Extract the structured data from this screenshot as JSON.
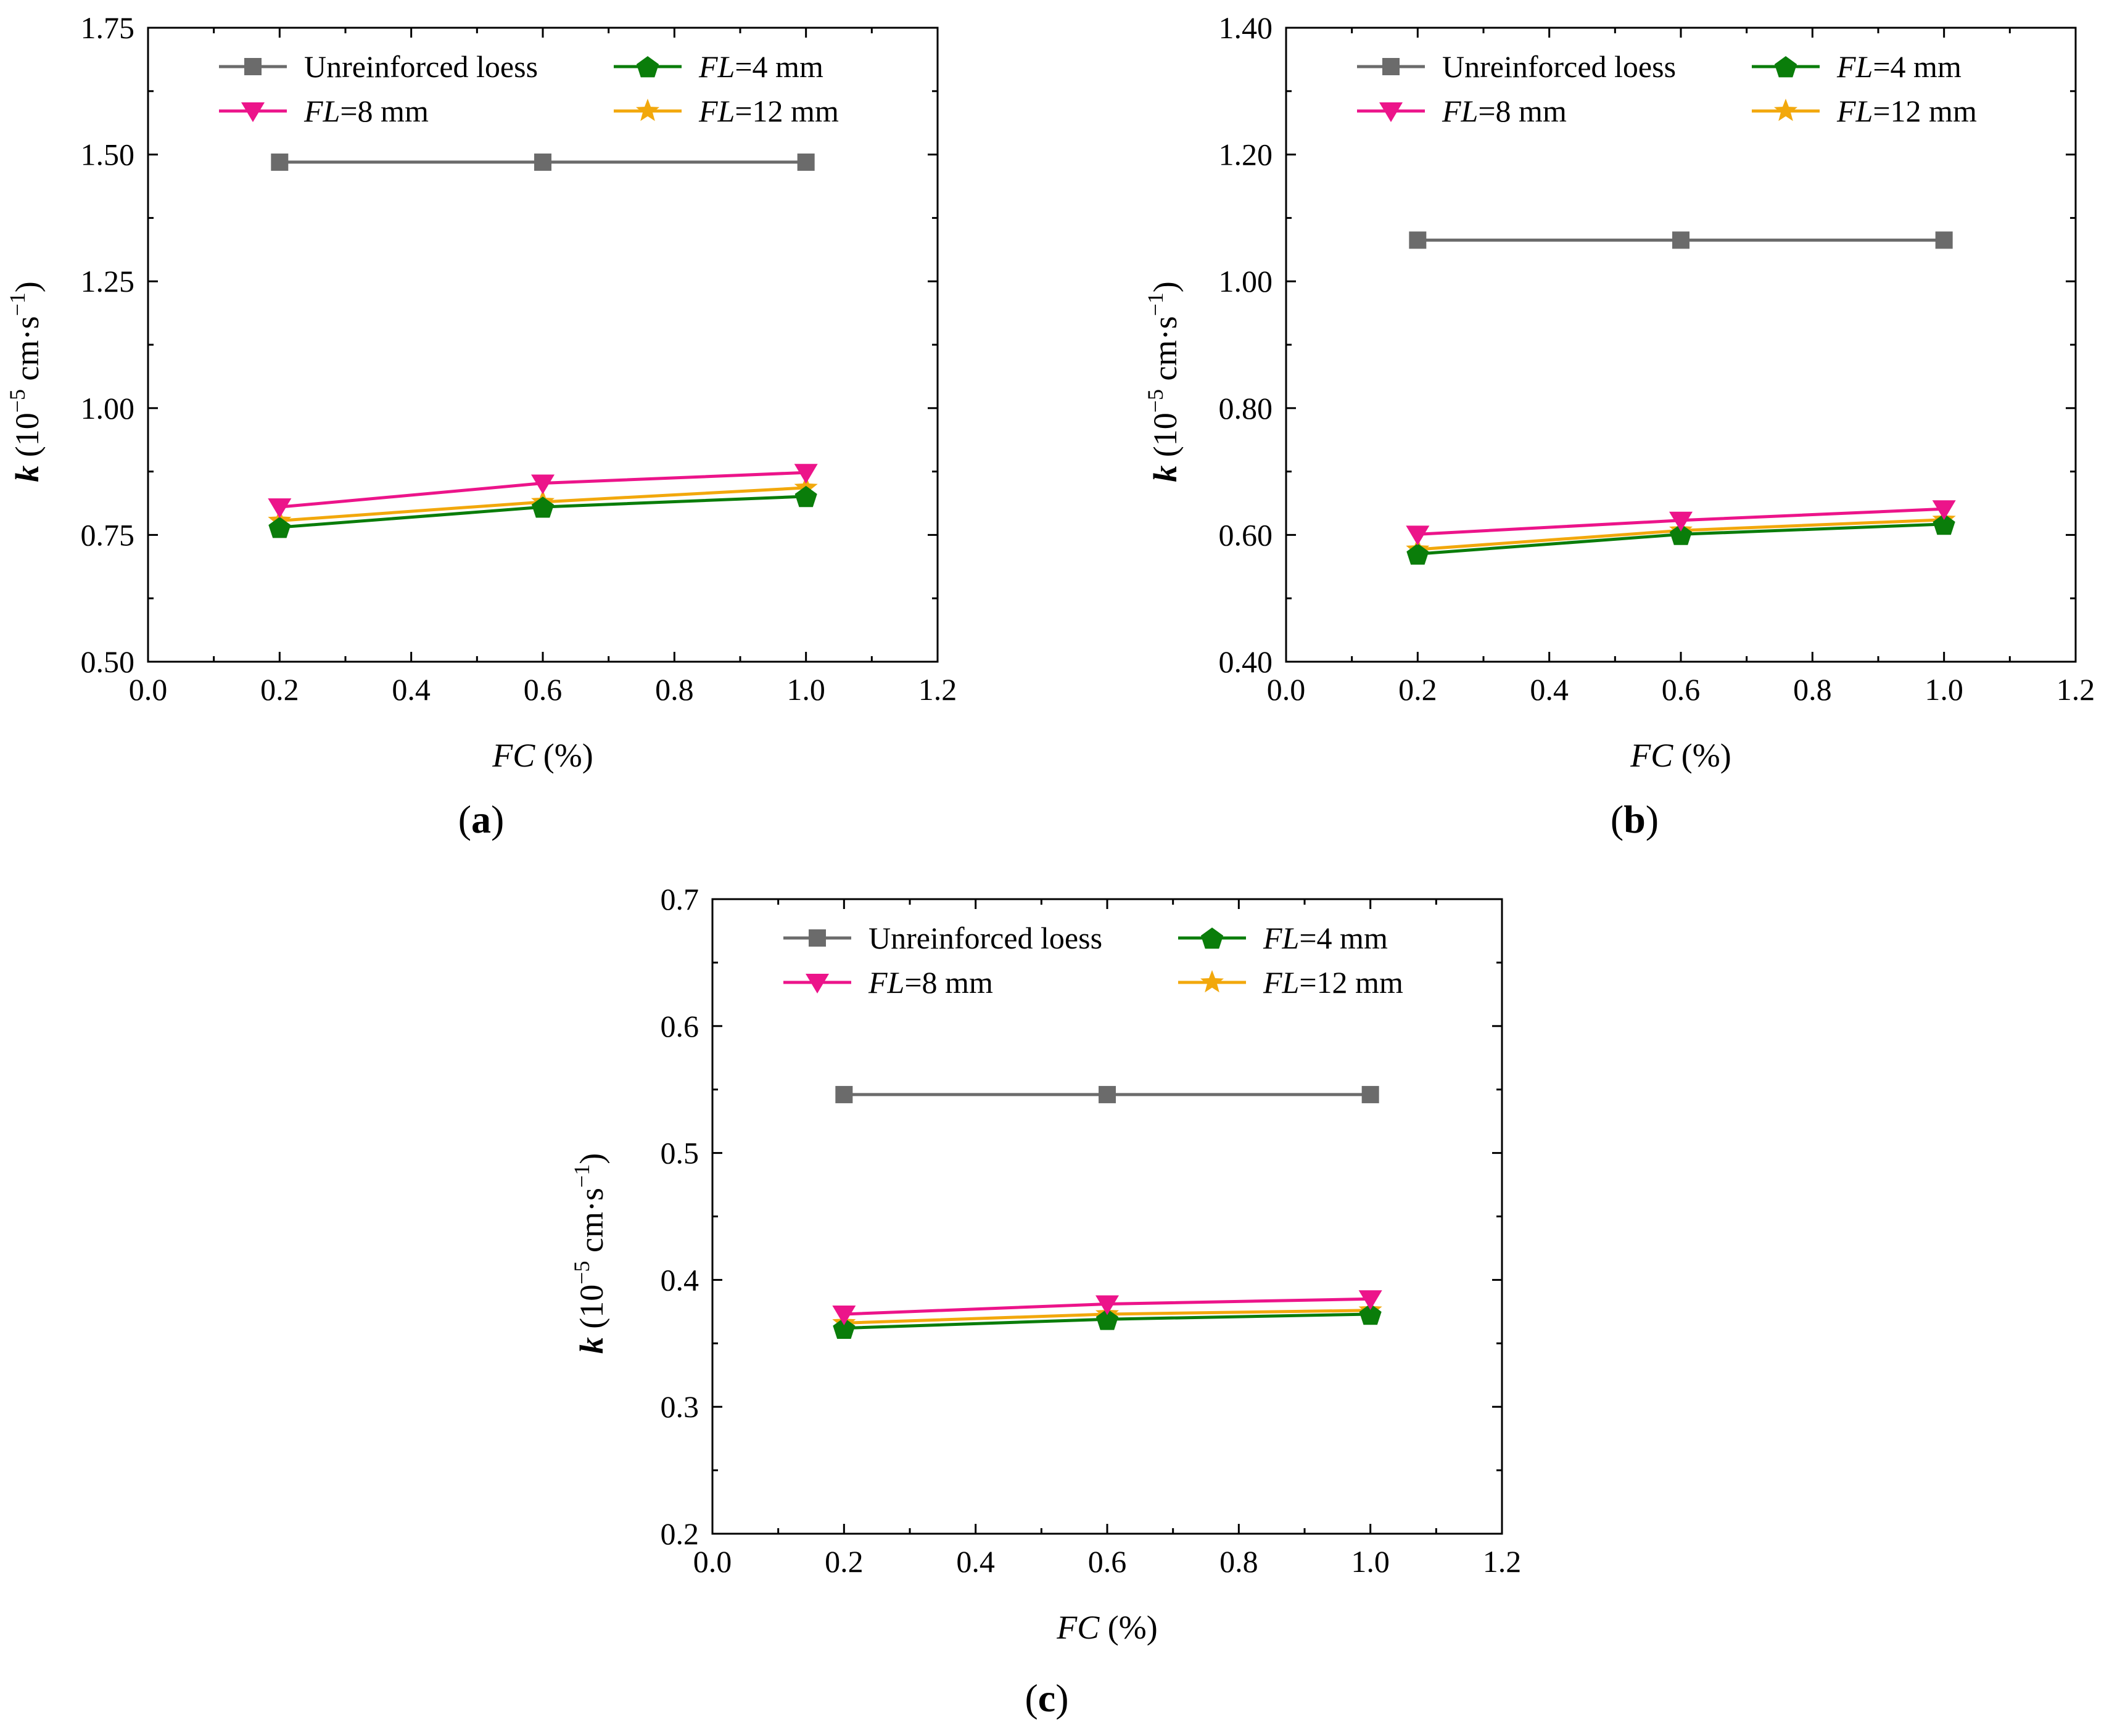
{
  "chart_data": [
    {
      "panel_label": "(a)",
      "panel_label_parts": [
        "(",
        "a",
        ")"
      ],
      "type": "line",
      "x": [
        0.2,
        0.6,
        1.0
      ],
      "xlim": [
        0.0,
        1.2
      ],
      "ylim": [
        0.5,
        1.75
      ],
      "xticks": [
        0.0,
        0.2,
        0.4,
        0.6,
        0.8,
        1.0,
        1.2
      ],
      "yticks": [
        0.5,
        0.75,
        1.0,
        1.25,
        1.5,
        1.75
      ],
      "xtick_labels": [
        "0.0",
        "0.2",
        "0.4",
        "0.6",
        "0.8",
        "1.0",
        "1.2"
      ],
      "ytick_labels": [
        "0.50",
        "0.75",
        "1.00",
        "1.25",
        "1.50",
        "1.75"
      ],
      "xlabel": "FC (%)",
      "ylabel": "k (10−5 cm·s−1)",
      "legend_position": "top",
      "series": [
        {
          "name": "Unreinforced loess",
          "marker": "square",
          "color": "#6b6b6b",
          "values": [
            1.485,
            1.485,
            1.485
          ]
        },
        {
          "name": "FL=4 mm",
          "marker": "pentagon",
          "color": "#0a7d0a",
          "values": [
            0.765,
            0.805,
            0.826
          ]
        },
        {
          "name": "FL=8 mm",
          "marker": "triangle-down",
          "color": "#ec148a",
          "values": [
            0.805,
            0.852,
            0.873
          ]
        },
        {
          "name": "FL=12 mm",
          "marker": "star",
          "color": "#f2a80c",
          "values": [
            0.778,
            0.815,
            0.843
          ]
        }
      ]
    },
    {
      "panel_label": "(b)",
      "panel_label_parts": [
        "(",
        "b",
        ")"
      ],
      "type": "line",
      "x": [
        0.2,
        0.6,
        1.0
      ],
      "xlim": [
        0.0,
        1.2
      ],
      "ylim": [
        0.4,
        1.4
      ],
      "xticks": [
        0.0,
        0.2,
        0.4,
        0.6,
        0.8,
        1.0,
        1.2
      ],
      "yticks": [
        0.4,
        0.6,
        0.8,
        1.0,
        1.2,
        1.4
      ],
      "xtick_labels": [
        "0.0",
        "0.2",
        "0.4",
        "0.6",
        "0.8",
        "1.0",
        "1.2"
      ],
      "ytick_labels": [
        "0.40",
        "0.60",
        "0.80",
        "1.00",
        "1.20",
        "1.40"
      ],
      "xlabel": "FC (%)",
      "ylabel": "k (10−5 cm·s−1)",
      "legend_position": "top",
      "series": [
        {
          "name": "Unreinforced loess",
          "marker": "square",
          "color": "#6b6b6b",
          "values": [
            1.065,
            1.065,
            1.065
          ]
        },
        {
          "name": "FL=4 mm",
          "marker": "pentagon",
          "color": "#0a7d0a",
          "values": [
            0.57,
            0.601,
            0.617
          ]
        },
        {
          "name": "FL=8 mm",
          "marker": "triangle-down",
          "color": "#ec148a",
          "values": [
            0.601,
            0.623,
            0.641
          ]
        },
        {
          "name": "FL=12 mm",
          "marker": "star",
          "color": "#f2a80c",
          "values": [
            0.577,
            0.607,
            0.624
          ]
        }
      ]
    },
    {
      "panel_label": "(c)",
      "panel_label_parts": [
        "(",
        "c",
        ")"
      ],
      "type": "line",
      "x": [
        0.2,
        0.6,
        1.0
      ],
      "xlim": [
        0.0,
        1.2
      ],
      "ylim": [
        0.2,
        0.7
      ],
      "xticks": [
        0.0,
        0.2,
        0.4,
        0.6,
        0.8,
        1.0,
        1.2
      ],
      "yticks": [
        0.2,
        0.3,
        0.4,
        0.5,
        0.6,
        0.7
      ],
      "xtick_labels": [
        "0.0",
        "0.2",
        "0.4",
        "0.6",
        "0.8",
        "1.0",
        "1.2"
      ],
      "ytick_labels": [
        "0.2",
        "0.3",
        "0.4",
        "0.5",
        "0.6",
        "0.7"
      ],
      "xlabel": "FC (%)",
      "ylabel": "k (10−5 cm·s−1)",
      "legend_position": "top",
      "series": [
        {
          "name": "Unreinforced loess",
          "marker": "square",
          "color": "#6b6b6b",
          "values": [
            0.546,
            0.546,
            0.546
          ]
        },
        {
          "name": "FL=4 mm",
          "marker": "pentagon",
          "color": "#0a7d0a",
          "values": [
            0.362,
            0.369,
            0.373
          ]
        },
        {
          "name": "FL=8 mm",
          "marker": "triangle-down",
          "color": "#ec148a",
          "values": [
            0.373,
            0.381,
            0.385
          ]
        },
        {
          "name": "FL=12 mm",
          "marker": "star",
          "color": "#f2a80c",
          "values": [
            0.366,
            0.373,
            0.376
          ]
        }
      ]
    }
  ],
  "axis_text": {
    "xlabel_italic": "FC",
    "xlabel_rest": " (%)",
    "ylabel_italic": "k",
    "ylabel_open": " (10",
    "ylabel_exp1": "−5",
    "ylabel_mid": " cm·s",
    "ylabel_exp2": "−1",
    "ylabel_close": ")"
  },
  "legend_text": {
    "unreinforced": "Unreinforced loess",
    "fl_prefix": "FL",
    "fl4_rest": "=4 mm",
    "fl8_rest": "=8 mm",
    "fl12_rest": "=12 mm"
  }
}
